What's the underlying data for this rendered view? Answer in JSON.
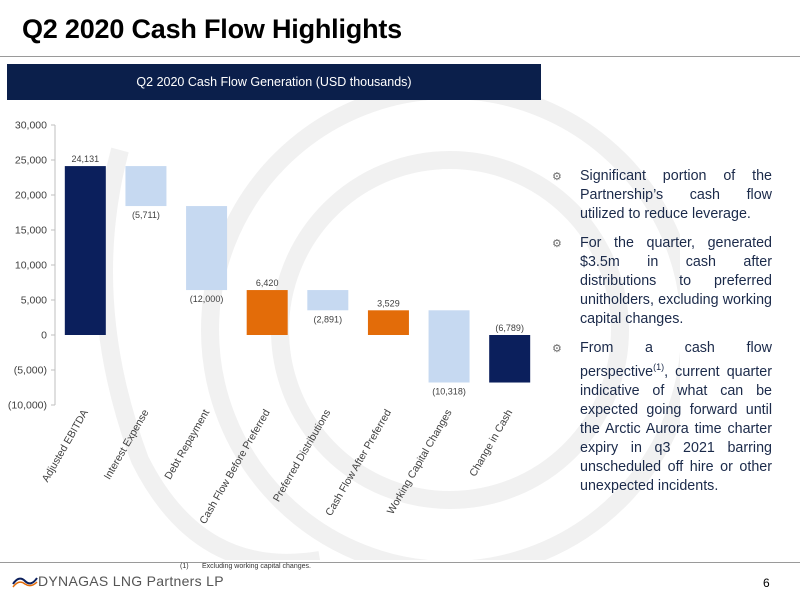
{
  "page": {
    "title": "Q2 2020 Cash Flow Highlights",
    "page_number": "6",
    "logo_text": "DYNAGAS LNG Partners LP"
  },
  "footnote": {
    "num": "(1)",
    "text": "Excluding working capital changes."
  },
  "bullets": [
    {
      "icon": "gear-icon",
      "text": "Significant portion of the Partnership’s cash flow utilized to reduce leverage."
    },
    {
      "icon": "gear-icon",
      "text": "For the quarter, generated $3.5m in cash after distributions to preferred unitholders, excluding working capital changes."
    },
    {
      "icon": "gear-icon",
      "before": "From a cash flow perspective",
      "sup": "(1)",
      "after": ", current quarter indicative of what can be expected going forward until the Arctic Aurora time charter expiry in q3 2021 barring unscheduled off hire or other unexpected incidents."
    }
  ],
  "chart_data": {
    "type": "bar",
    "subtype": "waterfall",
    "title": "Q2 2020 Cash Flow Generation (USD thousands)",
    "categories": [
      "Adjusted EBITDA",
      "Interest Expense",
      "Debt Repayment",
      "Cash Flow Before Preferred",
      "Preferred Distributions",
      "Cash Flow After Preferred",
      "Working Capital Changes",
      "Change in Cash"
    ],
    "values": [
      24131,
      -5711,
      -12000,
      6420,
      -2891,
      3529,
      -10318,
      -6789
    ],
    "labels": [
      "24,131",
      "(5,711)",
      "(12,000)",
      "6,420",
      "(2,891)",
      "3,529",
      "(10,318)",
      "(6,789)"
    ],
    "bar_kind": [
      "total",
      "delta",
      "delta",
      "subtotal",
      "delta",
      "subtotal",
      "delta",
      "total"
    ],
    "ylim": [
      -10000,
      30000
    ],
    "yticks": [
      30000,
      25000,
      20000,
      15000,
      10000,
      5000,
      0,
      -5000,
      -10000
    ],
    "ytick_labels": [
      "30,000",
      "25,000",
      "20,000",
      "15,000",
      "10,000",
      "5,000",
      "0",
      "(5,000)",
      "(10,000)"
    ],
    "grid": false,
    "legend": "none",
    "colors": {
      "total": "#0b1f5c",
      "subtotal": "#e36c09",
      "delta": "#c6d9f1",
      "axis": "#bfbfbf",
      "text": "#404040"
    }
  }
}
